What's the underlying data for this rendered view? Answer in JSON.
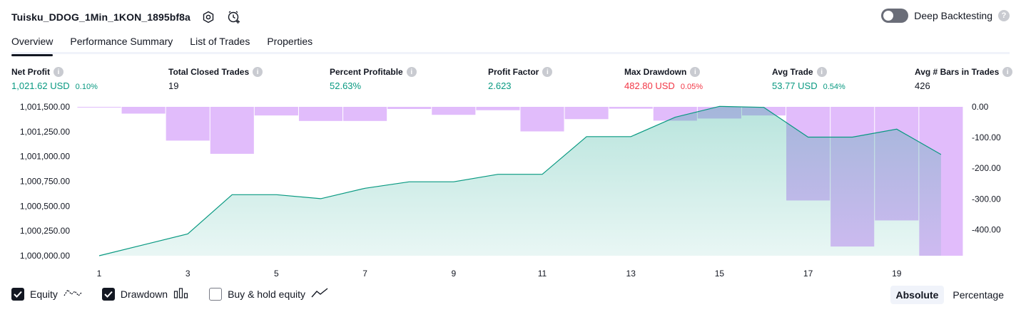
{
  "header": {
    "strategy_name": "Tuisku_DDOG_1Min_1KON_1895bf8a",
    "settings_icon": "settings-icon",
    "alert_icon": "add-alert-icon",
    "deep_backtesting_label": "Deep Backtesting",
    "deep_backtesting_on": false,
    "help_mark": "?"
  },
  "tabs": [
    {
      "label": "Overview",
      "active": true
    },
    {
      "label": "Performance Summary",
      "active": false
    },
    {
      "label": "List of Trades",
      "active": false
    },
    {
      "label": "Properties",
      "active": false
    }
  ],
  "metrics": [
    {
      "label": "Net Profit",
      "value": "1,021.62 USD",
      "sub": "0.10%",
      "color": "#089981"
    },
    {
      "label": "Total Closed Trades",
      "value": "19",
      "sub": "",
      "color": "#131722"
    },
    {
      "label": "Percent Profitable",
      "value": "52.63%",
      "sub": "",
      "color": "#089981"
    },
    {
      "label": "Profit Factor",
      "value": "2.623",
      "sub": "",
      "color": "#089981"
    },
    {
      "label": "Max Drawdown",
      "value": "482.80 USD",
      "sub": "0.05%",
      "color": "#f23645"
    },
    {
      "label": "Avg Trade",
      "value": "53.77 USD",
      "sub": "0.54%",
      "color": "#089981"
    },
    {
      "label": "Avg # Bars in Trades",
      "value": "426",
      "sub": "",
      "color": "#131722"
    }
  ],
  "info_mark": "i",
  "chart_data": {
    "type": "area",
    "x_ticks": [
      "1",
      "3",
      "5",
      "7",
      "9",
      "11",
      "13",
      "15",
      "17",
      "19"
    ],
    "left_axis": {
      "ticks": [
        "1,001,500.00",
        "1,001,250.00",
        "1,001,000.00",
        "1,000,750.00",
        "1,000,500.00",
        "1,000,250.00",
        "1,000,000.00"
      ],
      "range": [
        1000000,
        1001500
      ]
    },
    "right_axis": {
      "ticks": [
        "0.00",
        "-100.00",
        "-200.00",
        "-300.00",
        "-400.00"
      ],
      "range": [
        -485,
        0
      ]
    },
    "equity": {
      "x": [
        1,
        2,
        3,
        4,
        5,
        6,
        7,
        8,
        9,
        10,
        11,
        12,
        13,
        14,
        15,
        16,
        17,
        18,
        19,
        20
      ],
      "values": [
        1000000,
        1000110,
        1000220,
        1000615,
        1000615,
        1000575,
        1000680,
        1000745,
        1000745,
        1000820,
        1000820,
        1001200,
        1001200,
        1001395,
        1001505,
        1001495,
        1001195,
        1001195,
        1001275,
        1001020
      ],
      "line_color": "#089981",
      "fill_color": "#22ab94"
    },
    "drawdown": {
      "x": [
        1,
        2,
        3,
        4,
        5,
        6,
        7,
        8,
        9,
        10,
        11,
        12,
        13,
        14,
        15,
        16,
        17,
        18,
        19,
        20
      ],
      "values": [
        -1,
        -22,
        -110,
        -153,
        -28,
        -46,
        -46,
        -7,
        -26,
        -11,
        -80,
        -40,
        -6,
        -45,
        -38,
        -28,
        -305,
        -455,
        -370,
        -485
      ],
      "color": "#ce93f8"
    }
  },
  "legend": [
    {
      "label": "Equity",
      "checked": true,
      "icon": "equity-line-icon"
    },
    {
      "label": "Drawdown",
      "checked": true,
      "icon": "drawdown-bars-icon"
    },
    {
      "label": "Buy & hold equity",
      "checked": false,
      "icon": "buy-hold-line-icon"
    }
  ],
  "modes": [
    {
      "label": "Absolute",
      "active": true
    },
    {
      "label": "Percentage",
      "active": false
    }
  ]
}
